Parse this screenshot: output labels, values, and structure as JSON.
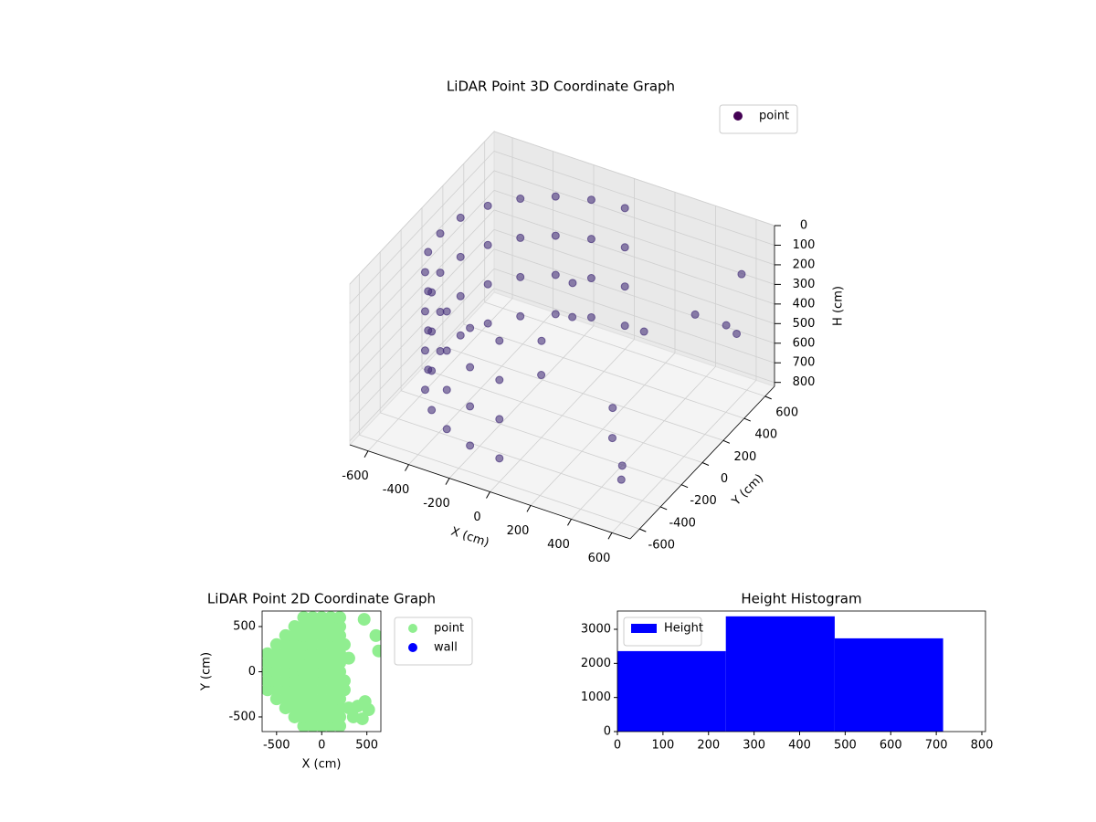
{
  "chart_data": [
    {
      "type": "scatter3d",
      "title": "LiDAR Point 3D Coordinate Graph",
      "x_label": "X (cm)",
      "y_label": "Y (cm)",
      "z_label": "H (cm)",
      "series": [
        {
          "name": "point",
          "color": "#46307a",
          "legend_color": "#440154",
          "x": [
            0,
            -155,
            -300,
            -424,
            -520,
            -580,
            -600,
            -580,
            -520,
            -424,
            -300,
            -155,
            0,
            0,
            -155,
            -300,
            -424,
            -520,
            -580,
            -600,
            -580,
            -520,
            -424,
            -300,
            -155,
            0,
            0,
            -155,
            -300,
            -424,
            -520,
            -580,
            -600,
            -580,
            -520,
            -424,
            -300,
            -155,
            0,
            0,
            -155,
            -300,
            -424,
            -520,
            -580,
            -600,
            -580,
            -520,
            -424,
            -300,
            -155,
            0,
            0,
            50,
            -50,
            0,
            300,
            350,
            450,
            600,
            500,
            550,
            600,
            550,
            300
          ],
          "y": [
            600,
            580,
            520,
            424,
            300,
            155,
            0,
            -155,
            -300,
            -424,
            -520,
            -580,
            -600,
            600,
            580,
            520,
            424,
            300,
            155,
            0,
            -155,
            -300,
            -424,
            -520,
            -580,
            -600,
            600,
            580,
            520,
            424,
            300,
            155,
            0,
            -155,
            -300,
            -424,
            -520,
            -580,
            -600,
            600,
            580,
            520,
            424,
            300,
            155,
            0,
            -155,
            -300,
            -424,
            -520,
            -580,
            -600,
            100,
            0,
            -100,
            -200,
            -100,
            -200,
            -300,
            -600,
            300,
            500,
            550,
            600,
            200
          ],
          "z": [
            100,
            100,
            100,
            100,
            100,
            100,
            100,
            100,
            100,
            100,
            100,
            100,
            100,
            300,
            300,
            300,
            300,
            300,
            300,
            300,
            300,
            300,
            300,
            300,
            300,
            300,
            500,
            500,
            500,
            500,
            500,
            500,
            500,
            500,
            500,
            500,
            500,
            500,
            500,
            700,
            700,
            700,
            700,
            700,
            700,
            700,
            700,
            700,
            700,
            700,
            700,
            700,
            200,
            300,
            400,
            500,
            620,
            700,
            750,
            600,
            300,
            450,
            200,
            550,
            400
          ]
        }
      ],
      "xlim": [
        -690,
        690
      ],
      "ylim": [
        -690,
        690
      ],
      "zlim": [
        0,
        820
      ],
      "z_inverted": true,
      "xticks": [
        -600,
        -400,
        -200,
        0,
        200,
        400,
        600
      ],
      "yticks": [
        -600,
        -400,
        -200,
        0,
        200,
        400,
        600
      ],
      "zticks": [
        0,
        100,
        200,
        300,
        400,
        500,
        600,
        700,
        800
      ],
      "grid": true,
      "legend": "upper right"
    },
    {
      "type": "scatter",
      "title": "LiDAR Point 2D Coordinate Graph",
      "x_label": "X (cm)",
      "y_label": "Y (cm)",
      "series": [
        {
          "name": "point",
          "color": "#90ee90",
          "x": [
            -600,
            -600,
            -600,
            -600,
            -600,
            -500,
            -500,
            -500,
            -500,
            -500,
            -500,
            -500,
            -400,
            -400,
            -400,
            -400,
            -400,
            -400,
            -400,
            -400,
            -400,
            -300,
            -300,
            -300,
            -300,
            -300,
            -300,
            -300,
            -300,
            -300,
            -300,
            -300,
            -200,
            -200,
            -200,
            -200,
            -200,
            -200,
            -200,
            -200,
            -200,
            -200,
            -200,
            -200,
            -200,
            -100,
            -100,
            -100,
            -100,
            -100,
            -100,
            -100,
            -100,
            -100,
            -100,
            -100,
            -100,
            -100,
            0,
            0,
            0,
            0,
            0,
            0,
            0,
            0,
            0,
            0,
            0,
            0,
            0,
            100,
            100,
            100,
            100,
            100,
            100,
            100,
            100,
            100,
            100,
            100,
            100,
            100,
            200,
            200,
            200,
            200,
            200,
            200,
            200,
            200,
            200,
            200,
            200,
            200,
            200,
            250,
            300,
            250,
            350,
            470,
            600,
            630,
            480,
            400,
            520,
            450,
            250,
            300
          ],
          "y": [
            -200,
            -100,
            0,
            100,
            200,
            -300,
            -200,
            -100,
            0,
            100,
            200,
            300,
            -400,
            -300,
            -200,
            -100,
            0,
            100,
            200,
            300,
            400,
            -500,
            -400,
            -300,
            -200,
            -100,
            0,
            100,
            200,
            300,
            400,
            500,
            -600,
            -500,
            -400,
            -300,
            -200,
            -100,
            0,
            100,
            200,
            300,
            400,
            500,
            600,
            -600,
            -500,
            -400,
            -300,
            -200,
            -100,
            0,
            100,
            200,
            300,
            400,
            500,
            600,
            -600,
            -500,
            -400,
            -300,
            -200,
            -100,
            0,
            100,
            200,
            300,
            400,
            500,
            600,
            -600,
            -500,
            -400,
            -300,
            -200,
            -100,
            0,
            100,
            200,
            300,
            400,
            500,
            600,
            -600,
            -500,
            -400,
            -300,
            -200,
            -100,
            0,
            100,
            200,
            300,
            400,
            500,
            600,
            -100,
            150,
            300,
            -500,
            580,
            400,
            230,
            -330,
            -380,
            -420,
            -520,
            -200,
            -400
          ]
        },
        {
          "name": "wall",
          "color": "#0000ff",
          "x": [],
          "y": []
        }
      ],
      "xlim": [
        -660,
        655
      ],
      "ylim": [
        -662,
        672
      ],
      "xticks": [
        -500,
        0,
        500
      ],
      "yticks": [
        -500,
        0,
        500
      ],
      "legend": "outside upper right"
    },
    {
      "type": "histogram",
      "title": "Height Histogram",
      "series": [
        {
          "name": "Height",
          "color": "#0000ff",
          "bins": [
            0,
            238,
            477,
            715
          ],
          "counts": [
            2360,
            3380,
            2735
          ]
        }
      ],
      "xlim": [
        0,
        808
      ],
      "ylim": [
        0,
        3536
      ],
      "xticks": [
        0,
        100,
        200,
        300,
        400,
        500,
        600,
        700,
        800
      ],
      "yticks": [
        0,
        1000,
        2000,
        3000
      ],
      "legend": "upper left"
    }
  ]
}
